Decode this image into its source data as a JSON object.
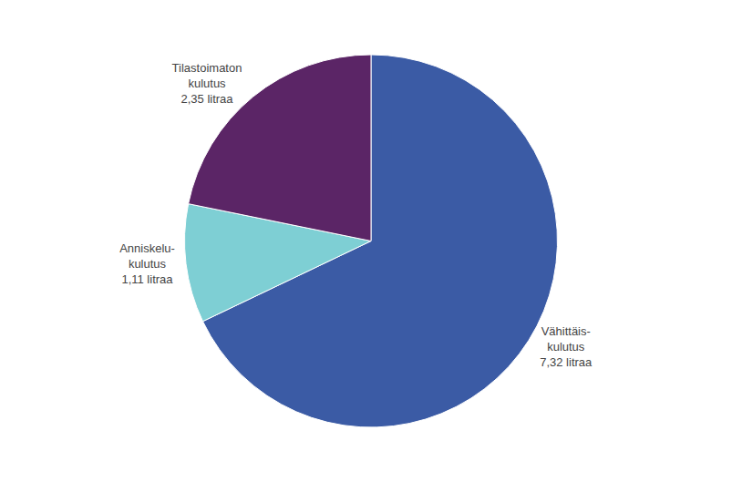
{
  "chart_data": {
    "type": "pie",
    "categories": [
      "Vähittäis-\nkulutus\n7,32 litraa",
      "Anniskelu-\nkulutus\n1,11 litraa",
      "Tilastoimaton\nkulutus\n2,35 litraa"
    ],
    "values": [
      7.32,
      1.11,
      2.35
    ],
    "colors": [
      "#3b5ba5",
      "#7ecfd4",
      "#5b2566"
    ]
  }
}
